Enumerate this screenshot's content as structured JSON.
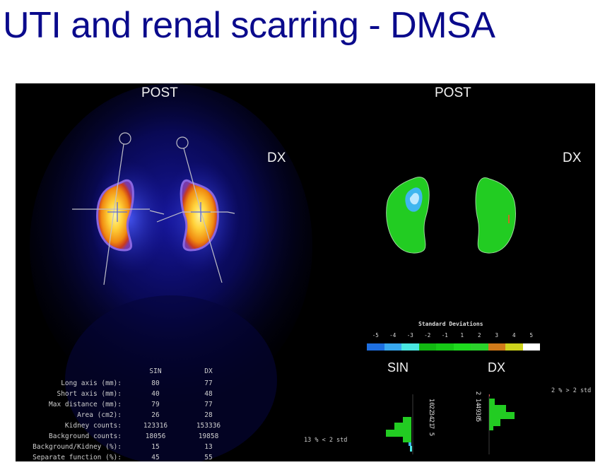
{
  "title": "UTI and renal scarring - DMSA",
  "left_panel": {
    "heading": "POST",
    "side_label": "DX"
  },
  "right_panel": {
    "heading": "POST",
    "side_label": "DX"
  },
  "stats": {
    "col_headers": [
      "SIN",
      "DX"
    ],
    "rows": [
      {
        "label": "Long axis (mm):",
        "sin": "80",
        "dx": "77"
      },
      {
        "label": "Short axis (mm):",
        "sin": "40",
        "dx": "48"
      },
      {
        "label": "Max distance (mm):",
        "sin": "79",
        "dx": "77"
      },
      {
        "label": "Area (cm2):",
        "sin": "26",
        "dx": "28"
      },
      {
        "label": "Kidney counts:",
        "sin": "123316",
        "dx": "153336"
      },
      {
        "label": "Background counts:",
        "sin": "18056",
        "dx": "19858"
      },
      {
        "label": "Background/Kidney (%):",
        "sin": "15",
        "dx": "13"
      },
      {
        "label": "Separate function (%):",
        "sin": "45",
        "dx": "55"
      }
    ]
  },
  "legend": {
    "title": "Standard Deviations",
    "ticks": [
      "-5",
      "-4",
      "-3",
      "-2",
      "-1",
      "1",
      "2",
      "3",
      "4",
      "5"
    ],
    "colors": [
      "#1e6fe0",
      "#38a8ef",
      "#49e6e0",
      "#12b812",
      "#16c916",
      "#1edb1e",
      "#2bd12b",
      "#d07a1a",
      "#cdd21c",
      "#ffffff"
    ]
  },
  "histogram": {
    "sin_label": "SIN",
    "dx_label": "DX",
    "sin_counts": [
      "10",
      "22",
      "34",
      "21",
      "7",
      "5"
    ],
    "dx_counts": [
      "2",
      "14",
      "49",
      "30",
      "5"
    ],
    "sin_note": "13 % < 2 std",
    "dx_note": "2 % > 2 std"
  }
}
